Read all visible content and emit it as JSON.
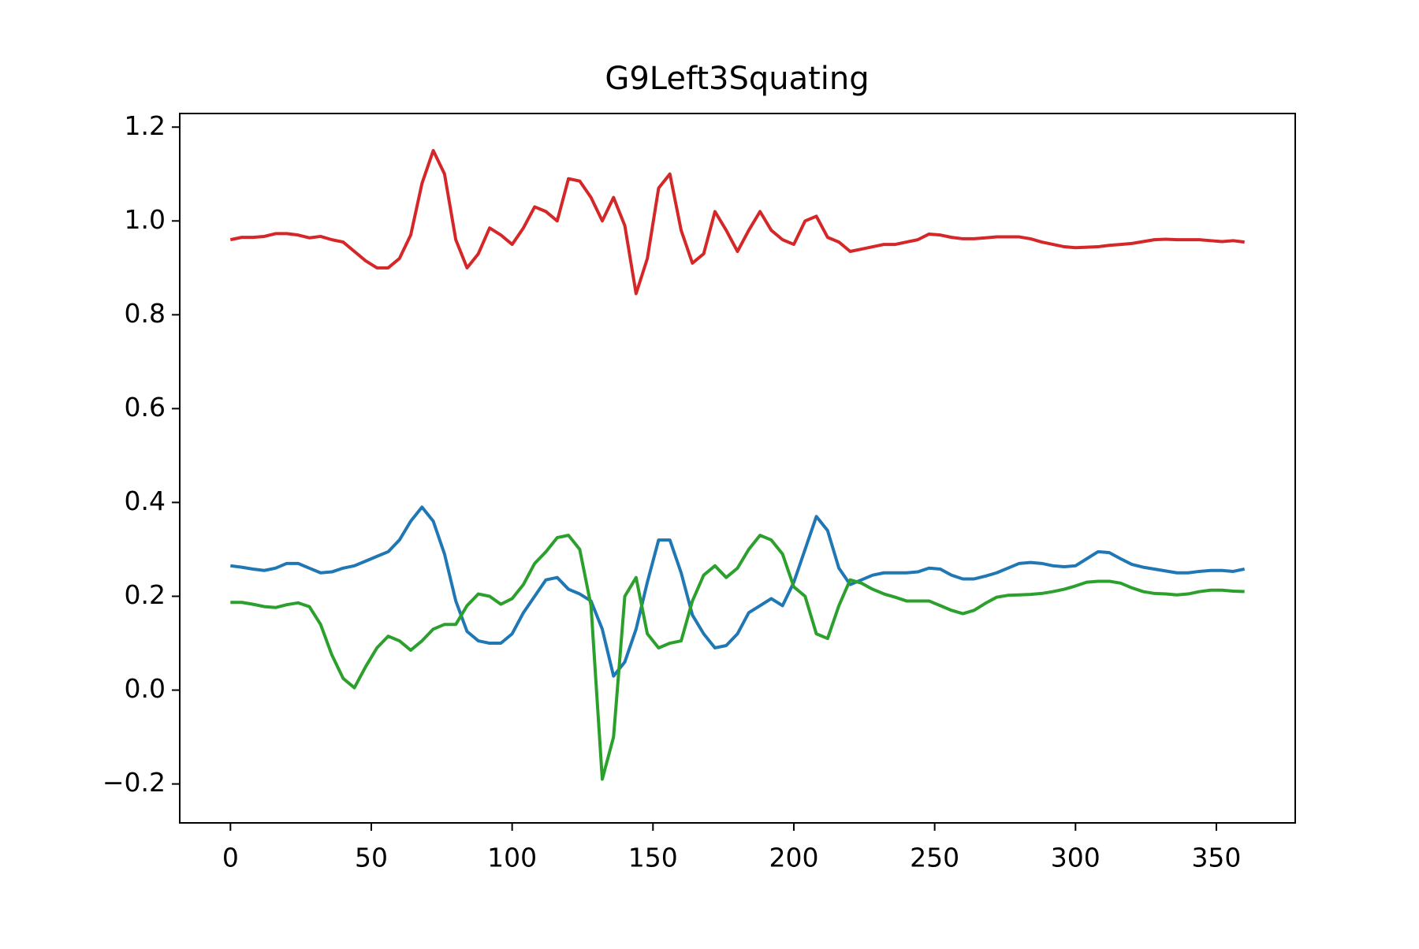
{
  "chart_data": {
    "type": "line",
    "title": "G9Left3Squating",
    "x": [
      0,
      4,
      8,
      12,
      16,
      20,
      24,
      28,
      32,
      36,
      40,
      44,
      48,
      52,
      56,
      60,
      64,
      68,
      72,
      76,
      80,
      84,
      88,
      92,
      96,
      100,
      104,
      108,
      112,
      116,
      120,
      124,
      128,
      132,
      136,
      140,
      144,
      148,
      152,
      156,
      160,
      164,
      168,
      172,
      176,
      180,
      184,
      188,
      192,
      196,
      200,
      204,
      208,
      212,
      216,
      220,
      224,
      228,
      232,
      236,
      240,
      244,
      248,
      252,
      256,
      260,
      264,
      268,
      272,
      276,
      280,
      284,
      288,
      292,
      296,
      300,
      304,
      308,
      312,
      316,
      320,
      324,
      328,
      332,
      336,
      340,
      344,
      348,
      352,
      356,
      360
    ],
    "series": [
      {
        "color": "#d62728",
        "values": [
          0.96,
          0.965,
          0.965,
          0.967,
          0.973,
          0.973,
          0.97,
          0.964,
          0.967,
          0.96,
          0.955,
          0.935,
          0.915,
          0.9,
          0.9,
          0.92,
          0.97,
          1.08,
          1.15,
          1.1,
          0.96,
          0.9,
          0.93,
          0.985,
          0.97,
          0.95,
          0.985,
          1.03,
          1.02,
          1.0,
          1.09,
          1.085,
          1.05,
          1.0,
          1.05,
          0.99,
          0.845,
          0.92,
          1.07,
          1.1,
          0.98,
          0.91,
          0.93,
          1.02,
          0.98,
          0.935,
          0.98,
          1.02,
          0.98,
          0.96,
          0.95,
          1.0,
          1.01,
          0.965,
          0.955,
          0.935,
          0.94,
          0.945,
          0.95,
          0.95,
          0.955,
          0.96,
          0.972,
          0.97,
          0.965,
          0.962,
          0.962,
          0.964,
          0.966,
          0.966,
          0.966,
          0.962,
          0.955,
          0.95,
          0.945,
          0.943,
          0.944,
          0.945,
          0.948,
          0.95,
          0.952,
          0.956,
          0.96,
          0.961,
          0.96,
          0.96,
          0.96,
          0.958,
          0.956,
          0.958,
          0.955
        ]
      },
      {
        "color": "#1f77b4",
        "values": [
          0.265,
          0.262,
          0.258,
          0.255,
          0.26,
          0.27,
          0.27,
          0.26,
          0.25,
          0.252,
          0.26,
          0.265,
          0.275,
          0.285,
          0.295,
          0.32,
          0.36,
          0.39,
          0.36,
          0.29,
          0.19,
          0.125,
          0.105,
          0.1,
          0.1,
          0.12,
          0.165,
          0.2,
          0.235,
          0.24,
          0.215,
          0.205,
          0.19,
          0.13,
          0.03,
          0.06,
          0.13,
          0.23,
          0.32,
          0.32,
          0.25,
          0.16,
          0.12,
          0.09,
          0.095,
          0.12,
          0.165,
          0.18,
          0.195,
          0.18,
          0.23,
          0.3,
          0.37,
          0.34,
          0.26,
          0.225,
          0.235,
          0.245,
          0.25,
          0.25,
          0.25,
          0.252,
          0.26,
          0.258,
          0.245,
          0.237,
          0.237,
          0.243,
          0.25,
          0.26,
          0.27,
          0.272,
          0.27,
          0.265,
          0.263,
          0.265,
          0.28,
          0.295,
          0.293,
          0.28,
          0.268,
          0.262,
          0.258,
          0.254,
          0.25,
          0.25,
          0.253,
          0.255,
          0.255,
          0.253,
          0.258
        ]
      },
      {
        "color": "#2ca02c",
        "values": [
          0.187,
          0.187,
          0.183,
          0.178,
          0.176,
          0.182,
          0.186,
          0.178,
          0.14,
          0.075,
          0.025,
          0.005,
          0.05,
          0.09,
          0.115,
          0.105,
          0.085,
          0.105,
          0.13,
          0.14,
          0.14,
          0.18,
          0.205,
          0.2,
          0.183,
          0.195,
          0.225,
          0.27,
          0.295,
          0.325,
          0.33,
          0.3,
          0.18,
          -0.19,
          -0.1,
          0.2,
          0.24,
          0.12,
          0.09,
          0.1,
          0.105,
          0.19,
          0.245,
          0.265,
          0.24,
          0.26,
          0.3,
          0.33,
          0.32,
          0.29,
          0.22,
          0.2,
          0.12,
          0.11,
          0.18,
          0.235,
          0.228,
          0.215,
          0.205,
          0.198,
          0.19,
          0.19,
          0.19,
          0.18,
          0.17,
          0.163,
          0.17,
          0.185,
          0.198,
          0.202,
          0.203,
          0.204,
          0.206,
          0.21,
          0.215,
          0.222,
          0.23,
          0.232,
          0.232,
          0.228,
          0.218,
          0.21,
          0.206,
          0.205,
          0.203,
          0.205,
          0.21,
          0.213,
          0.213,
          0.211,
          0.21
        ]
      }
    ],
    "xlim": [
      -18,
      378
    ],
    "xticks": [
      0,
      50,
      100,
      150,
      200,
      250,
      300,
      350
    ],
    "ylim": [
      -0.283,
      1.229
    ],
    "yticks": [
      {
        "value": -0.2,
        "label": "−0.2"
      },
      {
        "value": 0,
        "label": "0.0"
      },
      0.2,
      0.4,
      0.6,
      0.8,
      {
        "value": 1,
        "label": "1.0"
      },
      1.2
    ]
  }
}
